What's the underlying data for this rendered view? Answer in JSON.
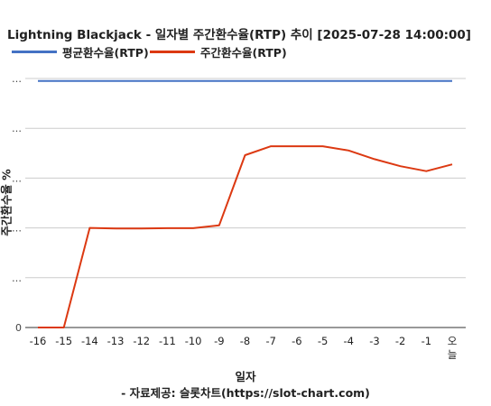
{
  "chart_data": {
    "type": "line",
    "title": "Lightning Blackjack - 일자별 주간환수율(RTP) 추이 [2025-07-28 14:00:00]",
    "xlabel": "일자",
    "ylabel": "주간환수율 %",
    "source": "- 자료제공: 슬롯차트(https://slot-chart.com)",
    "categories": [
      "-16",
      "-15",
      "-14",
      "-13",
      "-12",
      "-11",
      "-10",
      "-9",
      "-8",
      "-7",
      "-6",
      "-5",
      "-4",
      "-3",
      "-2",
      "-1",
      "오늘"
    ],
    "y_tick_labels": [
      "0",
      "…",
      "…",
      "…",
      "…",
      "…"
    ],
    "ylim": [
      0,
      100
    ],
    "grid": true,
    "legend_position": "top-left",
    "series": [
      {
        "name": "평균환수율(RTP)",
        "color": "#4472c4",
        "values": [
          99,
          99,
          99,
          99,
          99,
          99,
          99,
          99,
          99,
          99,
          99,
          99,
          99,
          99,
          99,
          99,
          99
        ]
      },
      {
        "name": "주간환수율(RTP)",
        "color": "#dc3912",
        "values": [
          0,
          0,
          40,
          39.8,
          39.8,
          39.9,
          39.9,
          41,
          69.2,
          72.8,
          72.8,
          72.8,
          71.1,
          67.6,
          64.8,
          62.8,
          65.5
        ]
      }
    ]
  }
}
